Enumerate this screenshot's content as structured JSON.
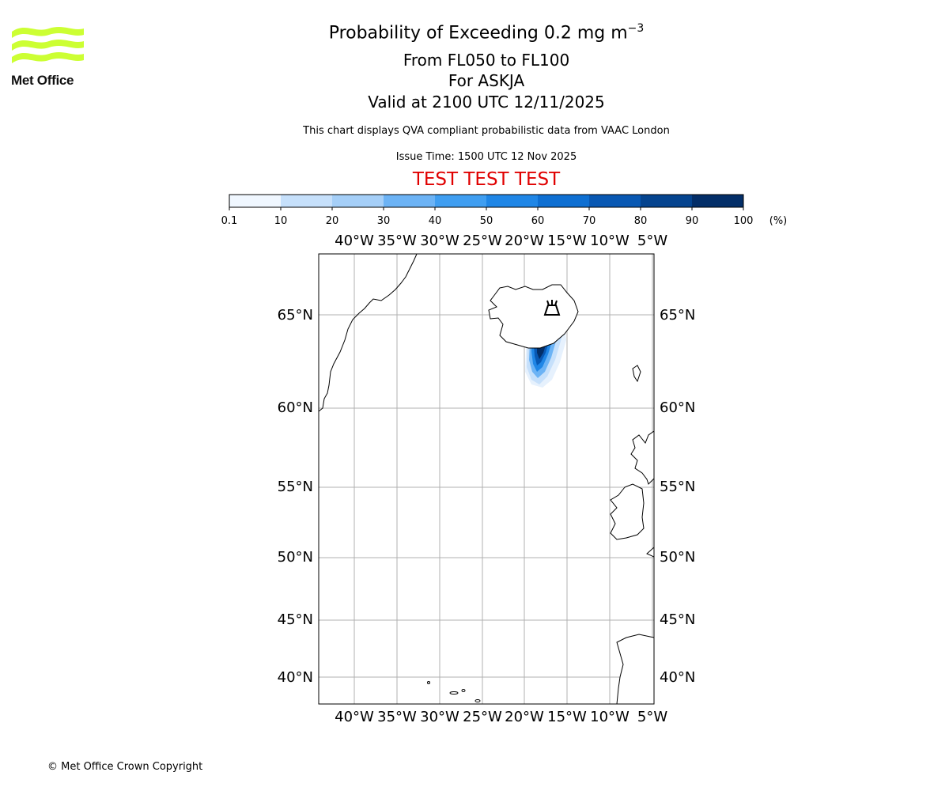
{
  "header": {
    "title": "Probability of Exceeding 0.2 mg m",
    "title_exponent": "−3",
    "level_range": "From FL050 to FL100",
    "volcano": "For ASKJA",
    "valid_time": "Valid at 2100 UTC 12/11/2025",
    "description": "This chart displays QVA compliant probabilistic data from VAAC London",
    "issue_time": "Issue Time: 1500 UTC 12 Nov 2025",
    "test_banner": "TEST TEST TEST"
  },
  "logo": {
    "text": "Met Office",
    "color": "#ccff33"
  },
  "colorbar": {
    "unit_label": "(%)",
    "ticks": [
      "0.1",
      "10",
      "20",
      "30",
      "40",
      "50",
      "60",
      "70",
      "80",
      "90",
      "100"
    ],
    "colors": [
      "#f0f7ff",
      "#c6e0fb",
      "#a5cff8",
      "#6cb3f5",
      "#3f9ef1",
      "#1f86e6",
      "#0e6fd2",
      "#0858b3",
      "#05448f",
      "#032e68"
    ]
  },
  "map": {
    "top_lon_labels": [
      "40°W",
      "35°W",
      "30°W",
      "25°W",
      "20°W",
      "15°W",
      "10°W",
      "5°W"
    ],
    "bottom_lon_labels": [
      "40°W",
      "35°W",
      "30°W",
      "25°W",
      "20°W",
      "15°W",
      "10°W",
      "5°W"
    ],
    "left_lat_labels": [
      "65°N",
      "60°N",
      "55°N",
      "50°N",
      "45°N",
      "40°N"
    ],
    "right_lat_labels": [
      "65°N",
      "60°N",
      "55°N",
      "50°N",
      "45°N",
      "40°N"
    ],
    "volcano_marker": "volcano-icon"
  },
  "footer": {
    "copyright": "© Met Office Crown Copyright"
  }
}
